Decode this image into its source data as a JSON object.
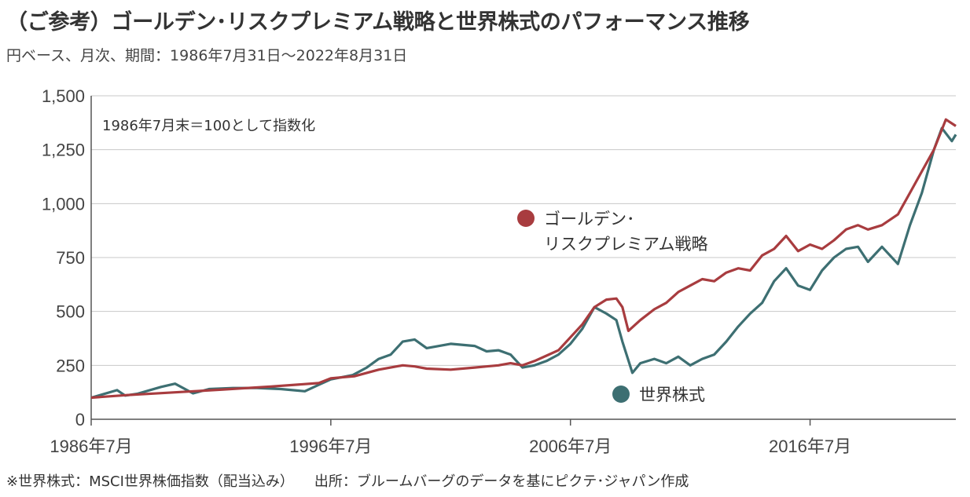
{
  "title": "（ご参考）ゴールデン･リスクプレミアム戦略と世界株式のパフォーマンス推移",
  "subtitle": "円ベース、月次、期間：1986年7月31日～2022年8月31日",
  "footer": {
    "note": "※世界株式：MSCI世界株価指数（配当込み）",
    "source": "出所：ブルームバーグのデータを基にピクテ･ジャパン作成"
  },
  "chart_data": {
    "type": "line",
    "title": "（ご参考）ゴールデン･リスクプレミアム戦略と世界株式のパフォーマンス推移",
    "subtitle": "円ベース、月次、期間：1986年7月31日～2022年8月31日",
    "annotation": "1986年7月末＝100として指数化",
    "x_range": [
      "1986-07",
      "2022-08"
    ],
    "ylim": [
      0,
      1500
    ],
    "yticks": [
      0,
      250,
      500,
      750,
      1000,
      1250,
      1500
    ],
    "ytick_labels": [
      "0",
      "250",
      "500",
      "750",
      "1,000",
      "1,250",
      "1,500"
    ],
    "xticks": [
      "1986-07",
      "1996-07",
      "2006-07",
      "2016-07"
    ],
    "xtick_labels": [
      "1986年7月",
      "1996年7月",
      "2006年7月",
      "2016年7月"
    ],
    "grid": "horizontal",
    "series": [
      {
        "name": "ゴールデン･リスクプレミアム戦略",
        "legend_lines": [
          "ゴールデン･",
          "リスクプレミアム戦略"
        ],
        "color": "#a83c3f",
        "points": [
          [
            "1986-07",
            100
          ],
          [
            "1988-01",
            112
          ],
          [
            "1990-01",
            125
          ],
          [
            "1992-01",
            138
          ],
          [
            "1994-01",
            152
          ],
          [
            "1996-01",
            168
          ],
          [
            "1996-07",
            190
          ],
          [
            "1997-07",
            200
          ],
          [
            "1998-07",
            230
          ],
          [
            "1999-07",
            250
          ],
          [
            "2000-01",
            245
          ],
          [
            "2000-07",
            235
          ],
          [
            "2001-07",
            230
          ],
          [
            "2002-07",
            240
          ],
          [
            "2003-01",
            245
          ],
          [
            "2003-07",
            250
          ],
          [
            "2004-01",
            260
          ],
          [
            "2004-07",
            250
          ],
          [
            "2005-01",
            270
          ],
          [
            "2005-07",
            295
          ],
          [
            "2006-01",
            320
          ],
          [
            "2006-07",
            380
          ],
          [
            "2007-01",
            440
          ],
          [
            "2007-07",
            520
          ],
          [
            "2008-01",
            555
          ],
          [
            "2008-06",
            560
          ],
          [
            "2008-09",
            520
          ],
          [
            "2008-12",
            410
          ],
          [
            "2009-06",
            460
          ],
          [
            "2010-01",
            510
          ],
          [
            "2010-07",
            540
          ],
          [
            "2011-01",
            590
          ],
          [
            "2011-07",
            620
          ],
          [
            "2012-01",
            650
          ],
          [
            "2012-07",
            640
          ],
          [
            "2013-01",
            680
          ],
          [
            "2013-07",
            700
          ],
          [
            "2014-01",
            690
          ],
          [
            "2014-07",
            760
          ],
          [
            "2015-01",
            790
          ],
          [
            "2015-07",
            850
          ],
          [
            "2016-01",
            780
          ],
          [
            "2016-07",
            810
          ],
          [
            "2017-01",
            790
          ],
          [
            "2017-07",
            830
          ],
          [
            "2018-01",
            880
          ],
          [
            "2018-07",
            900
          ],
          [
            "2018-12",
            880
          ],
          [
            "2019-07",
            900
          ],
          [
            "2020-03",
            950
          ],
          [
            "2020-09",
            1050
          ],
          [
            "2021-03",
            1150
          ],
          [
            "2021-09",
            1250
          ],
          [
            "2022-03",
            1390
          ],
          [
            "2022-08",
            1360
          ]
        ]
      },
      {
        "name": "世界株式",
        "legend_lines": [
          "世界株式"
        ],
        "color": "#3d6f72",
        "points": [
          [
            "1986-07",
            100
          ],
          [
            "1987-08",
            135
          ],
          [
            "1987-12",
            110
          ],
          [
            "1988-06",
            118
          ],
          [
            "1989-06",
            150
          ],
          [
            "1990-01",
            165
          ],
          [
            "1990-10",
            120
          ],
          [
            "1991-06",
            140
          ],
          [
            "1992-06",
            145
          ],
          [
            "1993-06",
            145
          ],
          [
            "1994-06",
            140
          ],
          [
            "1995-06",
            130
          ],
          [
            "1996-01",
            160
          ],
          [
            "1996-07",
            185
          ],
          [
            "1997-06",
            205
          ],
          [
            "1998-01",
            240
          ],
          [
            "1998-07",
            280
          ],
          [
            "1999-01",
            300
          ],
          [
            "1999-07",
            360
          ],
          [
            "2000-01",
            370
          ],
          [
            "2000-07",
            330
          ],
          [
            "2001-07",
            350
          ],
          [
            "2002-07",
            340
          ],
          [
            "2003-01",
            315
          ],
          [
            "2003-07",
            320
          ],
          [
            "2004-01",
            300
          ],
          [
            "2004-07",
            240
          ],
          [
            "2005-01",
            250
          ],
          [
            "2005-07",
            270
          ],
          [
            "2006-01",
            300
          ],
          [
            "2006-07",
            350
          ],
          [
            "2007-01",
            420
          ],
          [
            "2007-07",
            520
          ],
          [
            "2008-01",
            490
          ],
          [
            "2008-06",
            460
          ],
          [
            "2008-09",
            360
          ],
          [
            "2009-02",
            215
          ],
          [
            "2009-06",
            260
          ],
          [
            "2010-01",
            280
          ],
          [
            "2010-07",
            260
          ],
          [
            "2011-01",
            290
          ],
          [
            "2011-07",
            250
          ],
          [
            "2012-01",
            280
          ],
          [
            "2012-07",
            300
          ],
          [
            "2013-01",
            360
          ],
          [
            "2013-07",
            430
          ],
          [
            "2014-01",
            490
          ],
          [
            "2014-07",
            540
          ],
          [
            "2015-01",
            640
          ],
          [
            "2015-07",
            700
          ],
          [
            "2016-01",
            620
          ],
          [
            "2016-07",
            600
          ],
          [
            "2017-01",
            690
          ],
          [
            "2017-07",
            750
          ],
          [
            "2018-01",
            790
          ],
          [
            "2018-07",
            800
          ],
          [
            "2018-12",
            730
          ],
          [
            "2019-07",
            800
          ],
          [
            "2020-03",
            720
          ],
          [
            "2020-09",
            900
          ],
          [
            "2021-03",
            1050
          ],
          [
            "2021-09",
            1250
          ],
          [
            "2022-01",
            1350
          ],
          [
            "2022-06",
            1290
          ],
          [
            "2022-08",
            1320
          ]
        ]
      }
    ]
  }
}
